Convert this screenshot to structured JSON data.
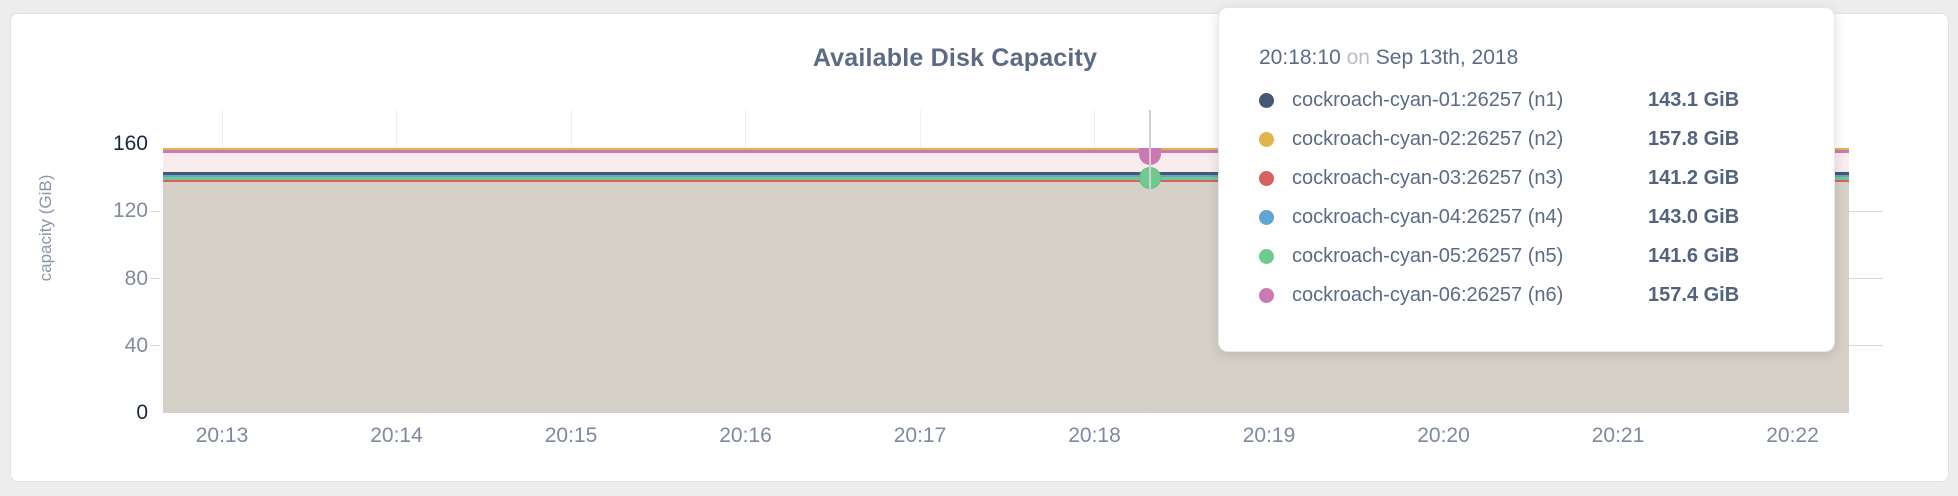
{
  "colors": {
    "page_bg": "#ededed",
    "card_bg": "#ffffff",
    "card_border": "#e3e3e3",
    "title_text": "#5b6b83",
    "ytick_dark": "#1a2743",
    "ytick_mid": "#818ca0",
    "xtick_text": "#7d89a0",
    "yaxis_label_text": "#8b95a9",
    "hgrid": "#ddd9d1",
    "vgrid": "rgba(100,100,90,0.10)",
    "fill_pink": "#f9ecec",
    "fill_gray": "#d5d1c9",
    "guide_line": "#d0d0d0"
  },
  "chart": {
    "title": "Available Disk Capacity",
    "y_axis": {
      "label": "capacity (GiB)",
      "ticks": [
        {
          "label": "160",
          "value": 160,
          "emphasis": true
        },
        {
          "label": "120",
          "value": 120,
          "emphasis": false
        },
        {
          "label": "80",
          "value": 80,
          "emphasis": false
        },
        {
          "label": "40",
          "value": 40,
          "emphasis": false
        },
        {
          "label": "0",
          "value": 0,
          "emphasis": true
        }
      ]
    },
    "x_axis": {
      "ticks": [
        "20:13",
        "20:14",
        "20:15",
        "20:16",
        "20:17",
        "20:18",
        "20:19",
        "20:20",
        "20:21",
        "20:22"
      ]
    }
  },
  "tooltip": {
    "time": "20:18:10",
    "connector": "on",
    "date": "Sep 13th, 2018",
    "rows": [
      {
        "name": "cockroach-cyan-01:26257 (n1)",
        "value": "143.1 GiB",
        "color": "#475872"
      },
      {
        "name": "cockroach-cyan-02:26257 (n2)",
        "value": "157.8 GiB",
        "color": "#e1b34a"
      },
      {
        "name": "cockroach-cyan-03:26257 (n3)",
        "value": "141.2 GiB",
        "color": "#d96060"
      },
      {
        "name": "cockroach-cyan-04:26257 (n4)",
        "value": "143.0 GiB",
        "color": "#5fa6d4"
      },
      {
        "name": "cockroach-cyan-05:26257 (n5)",
        "value": "141.6 GiB",
        "color": "#6fca8d"
      },
      {
        "name": "cockroach-cyan-06:26257 (n6)",
        "value": "157.4 GiB",
        "color": "#c97ab4"
      }
    ]
  },
  "chart_data": {
    "type": "area",
    "title": "Available Disk Capacity",
    "ylabel": "capacity (GiB)",
    "ylim": [
      0,
      160
    ],
    "x_ticks": [
      "20:13",
      "20:14",
      "20:15",
      "20:16",
      "20:17",
      "20:18",
      "20:19",
      "20:20",
      "20:21",
      "20:22"
    ],
    "grid": true,
    "note": "each series is flat (constant) across the visible time window",
    "hover": {
      "time": "20:18:10",
      "date": "Sep 13th, 2018"
    },
    "hover_markers": [
      {
        "series_index": 5,
        "shape": "half-circle"
      },
      {
        "series_index": 4,
        "shape": "circle"
      }
    ],
    "series": [
      {
        "name": "cockroach-cyan-01:26257 (n1)",
        "value_gib": 143.1,
        "color": "#475872"
      },
      {
        "name": "cockroach-cyan-02:26257 (n2)",
        "value_gib": 157.8,
        "color": "#e1b34a"
      },
      {
        "name": "cockroach-cyan-03:26257 (n3)",
        "value_gib": 141.2,
        "color": "#d96060"
      },
      {
        "name": "cockroach-cyan-04:26257 (n4)",
        "value_gib": 143.0,
        "color": "#5fa6d4"
      },
      {
        "name": "cockroach-cyan-05:26257 (n5)",
        "value_gib": 141.6,
        "color": "#6fca8d"
      },
      {
        "name": "cockroach-cyan-06:26257 (n6)",
        "value_gib": 157.4,
        "color": "#c97ab4"
      }
    ]
  }
}
